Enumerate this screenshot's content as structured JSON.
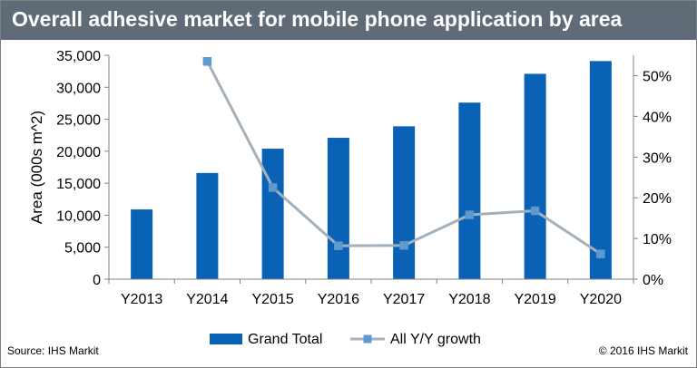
{
  "header": {
    "title": "Overall adhesive market for mobile phone application by area"
  },
  "footer": {
    "source": "Source: IHS Markit",
    "copyright": "© 2016 IHS Markit"
  },
  "colors": {
    "bar": "#0a62b6",
    "line": "#a4b0bc",
    "marker": "#5b9bd5",
    "header_bg": "#5f6b77"
  },
  "chart_data": {
    "type": "bar",
    "categories": [
      "Y2013",
      "Y2014",
      "Y2015",
      "Y2016",
      "Y2017",
      "Y2018",
      "Y2019",
      "Y2020"
    ],
    "series": [
      {
        "name": "Grand Total",
        "type": "bar",
        "axis": "left",
        "values": [
          10900,
          16600,
          20400,
          22100,
          23900,
          27600,
          32100,
          34100
        ]
      },
      {
        "name": "All Y/Y growth",
        "type": "line",
        "axis": "right",
        "values": [
          null,
          53.5,
          22.5,
          8.2,
          8.3,
          15.8,
          16.8,
          6.2
        ]
      }
    ],
    "ylabel": "Area (000s m^2)",
    "ylim": [
      0,
      35000
    ],
    "yticks": [
      "0",
      "5,000",
      "10,000",
      "15,000",
      "20,000",
      "25,000",
      "30,000",
      "35,000"
    ],
    "y2lim": [
      0,
      55
    ],
    "y2ticks": [
      "0%",
      "10%",
      "20%",
      "30%",
      "40%",
      "50%"
    ],
    "legend": "bottom",
    "grid": false
  }
}
